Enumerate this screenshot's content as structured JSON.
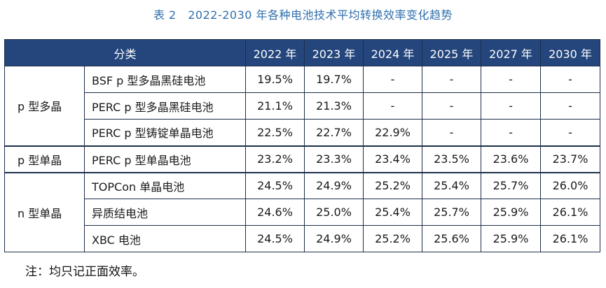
{
  "caption": "表 2　2022-2030 年各种电池技术平均转换效率变化趋势",
  "header": {
    "category": "分类",
    "years": [
      "2022 年",
      "2023 年",
      "2024 年",
      "2025 年",
      "2027 年",
      "2030 年"
    ]
  },
  "groups": [
    {
      "name": "p 型多晶",
      "rows": [
        {
          "tech": "BSF p 型多晶黑硅电池",
          "values": [
            "19.5%",
            "19.7%",
            "-",
            "-",
            "-",
            "-"
          ]
        },
        {
          "tech": "PERC p 型多晶黑硅电池",
          "values": [
            "21.1%",
            "21.3%",
            "-",
            "-",
            "-",
            "-"
          ]
        },
        {
          "tech": "PERC p 型铸锭单晶电池",
          "values": [
            "22.5%",
            "22.7%",
            "22.9%",
            "-",
            "-",
            "-"
          ]
        }
      ]
    },
    {
      "name": "p 型单晶",
      "rows": [
        {
          "tech": "PERC p 型单晶电池",
          "values": [
            "23.2%",
            "23.3%",
            "23.4%",
            "23.5%",
            "23.6%",
            "23.7%"
          ]
        }
      ]
    },
    {
      "name": "n 型单晶",
      "rows": [
        {
          "tech": "TOPCon 单晶电池",
          "values": [
            "24.5%",
            "24.9%",
            "25.2%",
            "25.4%",
            "25.7%",
            "26.0%"
          ]
        },
        {
          "tech": "异质结电池",
          "values": [
            "24.6%",
            "25.0%",
            "25.4%",
            "25.7%",
            "25.9%",
            "26.1%"
          ]
        },
        {
          "tech": "XBC 电池",
          "values": [
            "24.5%",
            "24.9%",
            "25.2%",
            "25.6%",
            "25.9%",
            "26.1%"
          ]
        }
      ]
    }
  ],
  "note": "注：均只记正面效率。"
}
